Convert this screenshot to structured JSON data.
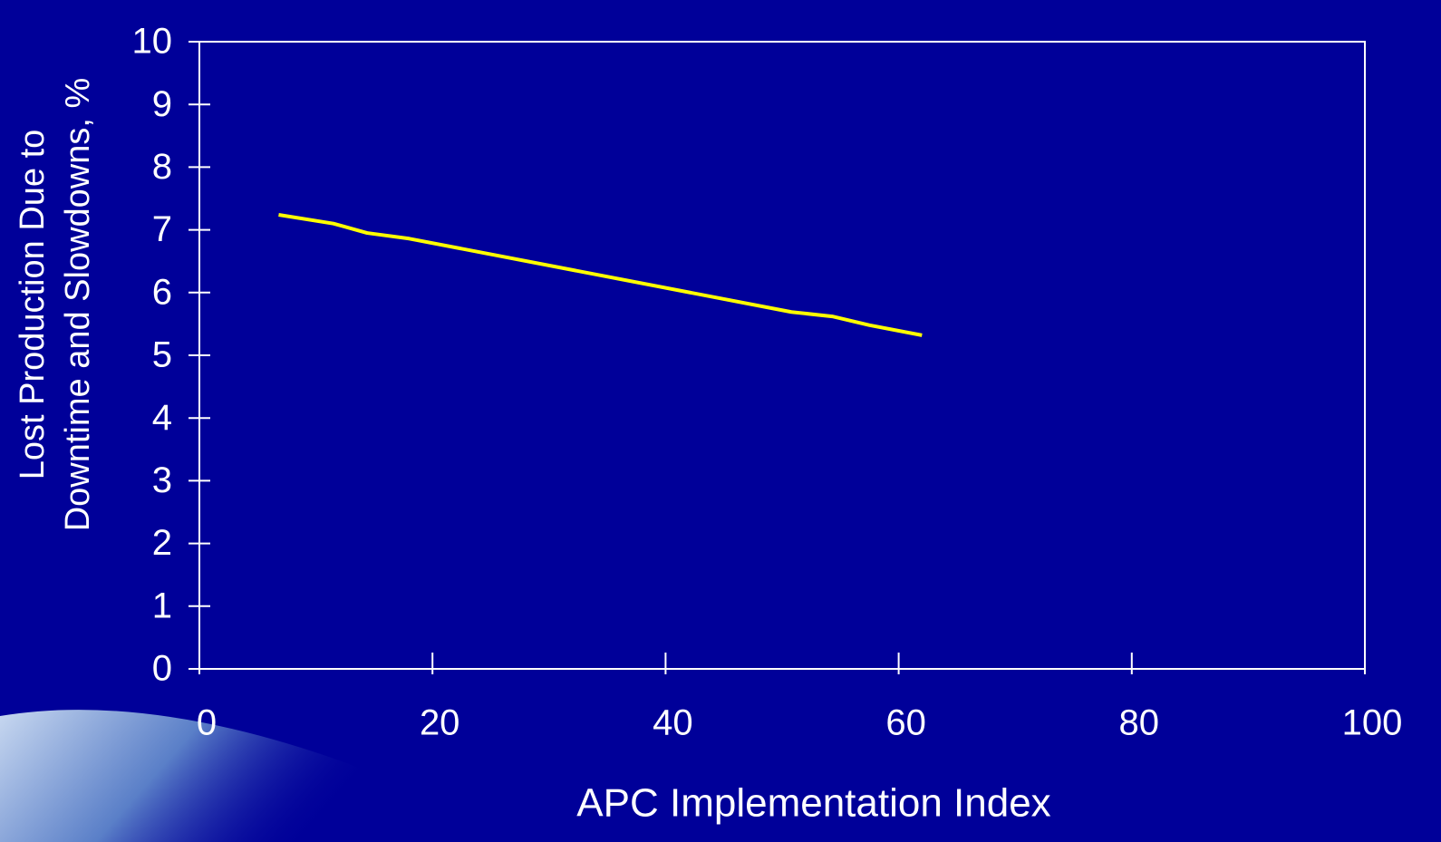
{
  "chart_data": {
    "type": "line",
    "xlabel": "APC Implementation Index",
    "ylabel": [
      "Lost Production Due to",
      "Downtime and Slowdowns, %"
    ],
    "x": [
      6.8,
      11.5,
      14.4,
      18.0,
      50.8,
      54.3,
      57.5,
      62.0
    ],
    "series": [
      {
        "color": "#ffff00",
        "values": [
          7.24,
          7.1,
          6.95,
          6.86,
          5.69,
          5.62,
          5.48,
          5.32
        ]
      }
    ],
    "xlim": [
      0,
      100
    ],
    "xticks": [
      0,
      20,
      40,
      60,
      80,
      100
    ],
    "ylim": [
      0,
      10
    ],
    "yticks": [
      0,
      1,
      2,
      3,
      4,
      5,
      6,
      7,
      8,
      9,
      10
    ],
    "grid": false
  }
}
